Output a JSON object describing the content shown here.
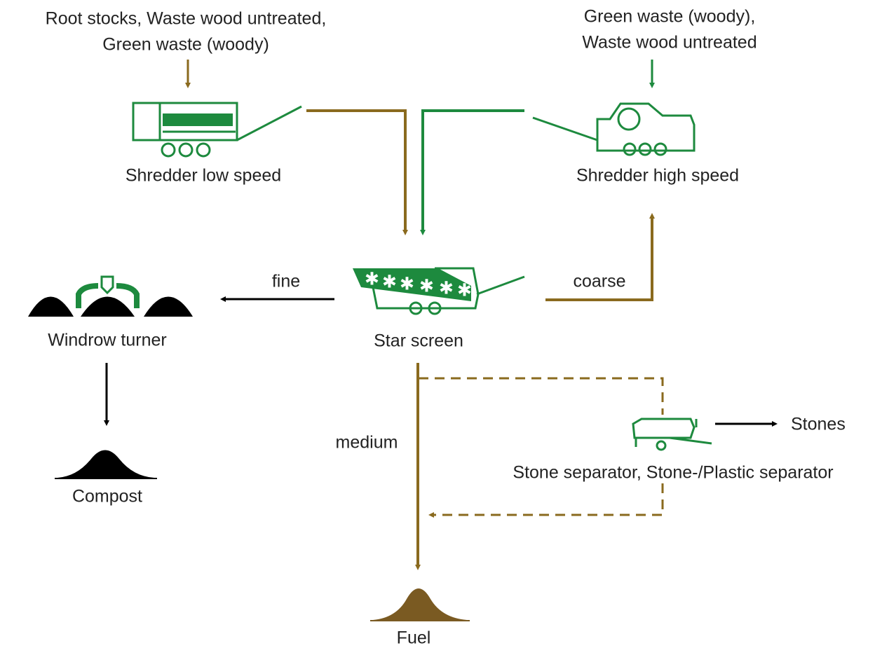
{
  "inputs": {
    "left": [
      "Root stocks, Waste wood untreated,",
      "Green waste (woody)"
    ],
    "right": [
      "Green waste (woody),",
      "Waste wood untreated"
    ]
  },
  "nodes": {
    "shredder_low": "Shredder low speed",
    "shredder_high": "Shredder high speed",
    "star_screen": "Star screen",
    "windrow_turner": "Windrow turner",
    "compost": "Compost",
    "stone_separator": "Stone separator, Stone-/Plastic separator",
    "fuel": "Fuel"
  },
  "flows": {
    "fine": "fine",
    "coarse": "coarse",
    "medium": "medium"
  },
  "outputs": {
    "stones": "Stones"
  }
}
